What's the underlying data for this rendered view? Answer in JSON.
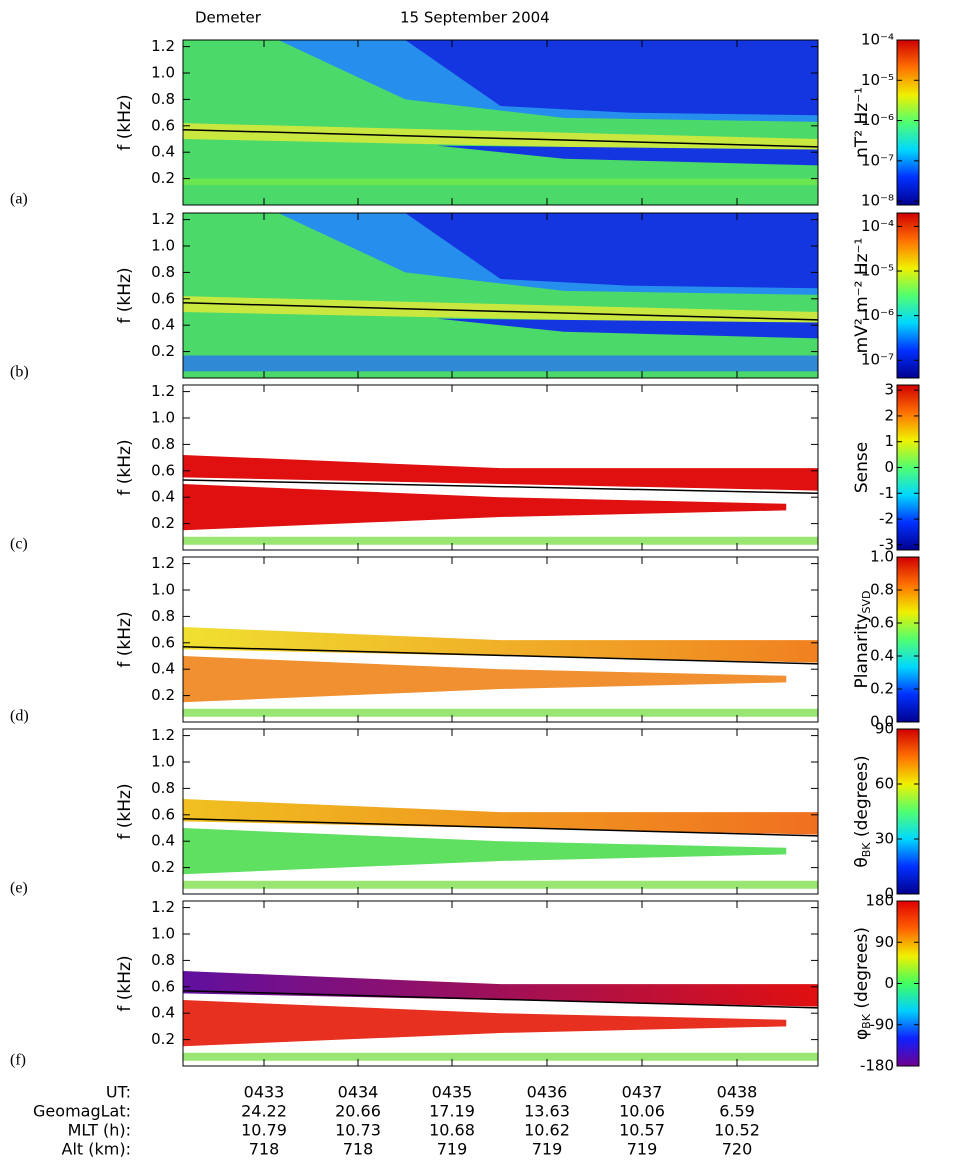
{
  "title_left": "Demeter",
  "title_date": "15 September 2004",
  "chart_data": [
    {
      "type": "spectrogram",
      "panel_label": "(a)",
      "ylabel": "f (kHz)",
      "ylim": [
        0,
        1.25
      ],
      "yticks": [
        0.2,
        0.4,
        0.6,
        0.8,
        {
          "value": 1,
          "label": "1.0"
        },
        1.2
      ],
      "curve": [
        0.57,
        0.44
      ],
      "colorbar": {
        "label": "nT² Hz⁻¹",
        "log": true,
        "clim": [
          8e-09,
          0.0001
        ],
        "ticks": [
          {
            "value": 1e-08,
            "label": "10⁻⁸"
          },
          {
            "value": 1e-07,
            "label": "10⁻⁷"
          },
          {
            "value": 1e-06,
            "label": "10⁻⁶"
          },
          {
            "value": 1e-05,
            "label": "10⁻⁵"
          },
          {
            "value": 0.0001,
            "label": "10⁻⁴"
          }
        ],
        "colormap": [
          "#00008f",
          "#0030ff",
          "#00d8ff",
          "#50ff70",
          "#f0f000",
          "#ff7000",
          "#d00000"
        ]
      }
    },
    {
      "type": "spectrogram",
      "panel_label": "(b)",
      "ylabel": "f (kHz)",
      "ylim": [
        0,
        1.25
      ],
      "yticks": [
        0.2,
        0.4,
        0.6,
        0.8,
        {
          "value": 1,
          "label": "1.0"
        },
        1.2
      ],
      "curve": [
        0.57,
        0.44
      ],
      "colorbar": {
        "label": "mV² m⁻² Hz⁻¹",
        "log": true,
        "clim": [
          4e-08,
          0.0002
        ],
        "ticks": [
          {
            "value": 1e-07,
            "label": "10⁻⁷"
          },
          {
            "value": 1e-06,
            "label": "10⁻⁶"
          },
          {
            "value": 1e-05,
            "label": "10⁻⁵"
          },
          {
            "value": 0.0001,
            "label": "10⁻⁴"
          }
        ],
        "colormap": [
          "#00008f",
          "#0030ff",
          "#00d8ff",
          "#50ff70",
          "#f0f000",
          "#ff7000",
          "#d00000"
        ]
      }
    },
    {
      "type": "spectrogram",
      "panel_label": "(c)",
      "ylabel": "f (kHz)",
      "ylim": [
        0,
        1.25
      ],
      "yticks": [
        0.2,
        0.4,
        0.6,
        0.8,
        {
          "value": 1,
          "label": "1.0"
        },
        1.2
      ],
      "curve": [
        0.53,
        0.43
      ],
      "colorbar": {
        "label": "Sense",
        "log": false,
        "clim": [
          -3.2,
          3.2
        ],
        "ticks": [
          -3,
          -2,
          -1,
          0,
          1,
          2,
          3
        ],
        "colormap": [
          "#00008f",
          "#0030ff",
          "#00d8ff",
          "#50ff70",
          "#f0f000",
          "#ff7000",
          "#d00000"
        ]
      }
    },
    {
      "type": "spectrogram",
      "panel_label": "(d)",
      "ylabel": "f (kHz)",
      "ylim": [
        0,
        1.25
      ],
      "yticks": [
        0.2,
        0.4,
        0.6,
        0.8,
        {
          "value": 1,
          "label": "1.0"
        },
        1.2
      ],
      "curve": [
        0.57,
        0.44
      ],
      "colorbar": {
        "label": "Planarity",
        "label_sub": "SVD",
        "log": false,
        "clim": [
          0,
          1
        ],
        "ticks": [
          {
            "value": 0,
            "label": "0.0"
          },
          0.2,
          0.4,
          0.6,
          0.8,
          {
            "value": 1,
            "label": "1.0"
          }
        ],
        "colormap": [
          "#00008f",
          "#0030ff",
          "#00d8ff",
          "#50ff70",
          "#f0f000",
          "#ff7000",
          "#d00000"
        ]
      }
    },
    {
      "type": "spectrogram",
      "panel_label": "(e)",
      "ylabel": "f (kHz)",
      "ylim": [
        0,
        1.25
      ],
      "yticks": [
        0.2,
        0.4,
        0.6,
        0.8,
        {
          "value": 1,
          "label": "1.0"
        },
        1.2
      ],
      "curve": [
        0.57,
        0.44
      ],
      "colorbar": {
        "label": "θ",
        "label_sub": "BK",
        "label_after": " (degrees)",
        "log": false,
        "clim": [
          0,
          90
        ],
        "ticks": [
          0,
          30,
          60,
          90
        ],
        "colormap": [
          "#00008f",
          "#0030ff",
          "#00d8ff",
          "#50ff70",
          "#f0f000",
          "#ff7000",
          "#d00000"
        ]
      }
    },
    {
      "type": "spectrogram",
      "panel_label": "(f)",
      "ylabel": "f (kHz)",
      "ylim": [
        0,
        1.25
      ],
      "yticks": [
        0.2,
        0.4,
        0.6,
        0.8,
        {
          "value": 1,
          "label": "1.0"
        },
        1.2
      ],
      "curve": [
        0.57,
        0.44
      ],
      "colorbar": {
        "label": "φ",
        "label_sub": "BK",
        "label_after": " (degrees)",
        "log": false,
        "clim": [
          -180,
          180
        ],
        "ticks": [
          -180,
          -90,
          0,
          90,
          180
        ],
        "colormap": [
          "#700090",
          "#1020ff",
          "#00d0ff",
          "#40ff60",
          "#f0f000",
          "#ff6000",
          "#e00000"
        ]
      }
    }
  ],
  "time_axis": {
    "rows": [
      {
        "label": "UT:",
        "values": [
          "0433",
          "0434",
          "0435",
          "0436",
          "0437",
          "0438"
        ]
      },
      {
        "label": "GeomagLat:",
        "values": [
          24.22,
          20.66,
          17.19,
          13.63,
          10.06,
          6.59
        ]
      },
      {
        "label": "MLT (h):",
        "values": [
          10.79,
          10.73,
          10.68,
          10.62,
          10.57,
          10.52
        ]
      },
      {
        "label": "Alt (km):",
        "values": [
          718,
          718,
          719,
          719,
          719,
          720
        ]
      }
    ]
  }
}
